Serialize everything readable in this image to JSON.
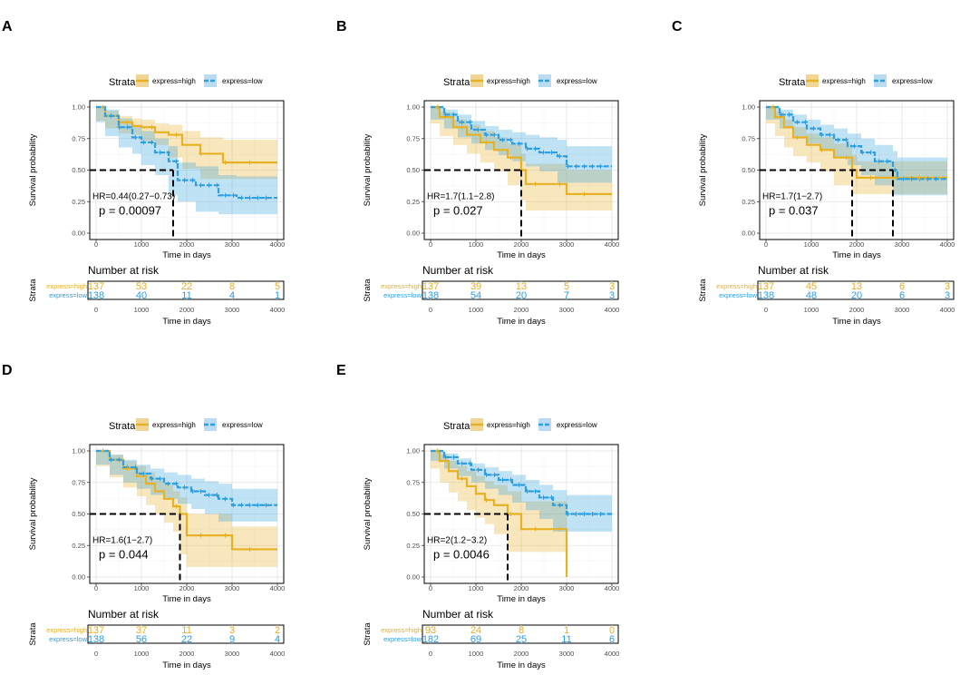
{
  "colors": {
    "high": "#E7B125",
    "low": "#2E9FDF",
    "high_band": "#F0D595",
    "low_band": "#B9DCF0",
    "grid": "#E3E3E3"
  },
  "chart_data": [
    {
      "type": "line",
      "panel": "A",
      "legend": {
        "title": "Strata",
        "labels": [
          "express=high",
          "express=low"
        ]
      },
      "xlabel": "Time in days",
      "ylabel": "Survival probability",
      "xlim": [
        0,
        4000
      ],
      "ylim": [
        0,
        1
      ],
      "x_ticks": [
        "0",
        "1000",
        "2000",
        "3000",
        "4000"
      ],
      "y_ticks": [
        "0.00",
        "0.25",
        "0.50",
        "0.75",
        "1.00"
      ],
      "hr_text": "HR=0.44(0.27−0.73)",
      "p_text": "p = 0.00097",
      "median_times": [
        1700
      ],
      "series": [
        {
          "name": "express=high",
          "x": [
            0,
            200,
            500,
            800,
            1000,
            1300,
            1600,
            1900,
            2300,
            2800,
            4000
          ],
          "y": [
            1.0,
            0.93,
            0.88,
            0.85,
            0.84,
            0.8,
            0.78,
            0.7,
            0.63,
            0.56,
            0.56
          ],
          "lower": [
            1.0,
            0.89,
            0.83,
            0.79,
            0.78,
            0.73,
            0.7,
            0.6,
            0.51,
            0.43,
            0.43
          ],
          "upper": [
            1.0,
            0.97,
            0.93,
            0.91,
            0.9,
            0.87,
            0.86,
            0.81,
            0.76,
            0.74,
            0.74
          ]
        },
        {
          "name": "express=low",
          "x": [
            0,
            200,
            500,
            800,
            1000,
            1300,
            1600,
            1800,
            2200,
            2700,
            3100,
            4000
          ],
          "y": [
            1.0,
            0.93,
            0.84,
            0.76,
            0.72,
            0.64,
            0.57,
            0.42,
            0.38,
            0.3,
            0.28,
            0.28
          ],
          "lower": [
            1.0,
            0.88,
            0.77,
            0.68,
            0.63,
            0.54,
            0.46,
            0.3,
            0.25,
            0.17,
            0.15,
            0.15
          ],
          "upper": [
            1.0,
            0.98,
            0.91,
            0.85,
            0.81,
            0.75,
            0.69,
            0.56,
            0.53,
            0.46,
            0.45,
            0.45
          ]
        }
      ],
      "risk_table": {
        "title": "Number at risk",
        "strata_label": "Strata",
        "xlabel": "Time in days",
        "rows": [
          {
            "label": "express=high",
            "values": [
              "137",
              "53",
              "22",
              "8",
              "5"
            ]
          },
          {
            "label": "express=low",
            "values": [
              "138",
              "40",
              "11",
              "4",
              "1"
            ]
          }
        ]
      }
    },
    {
      "type": "line",
      "panel": "B",
      "legend": {
        "title": "Strata",
        "labels": [
          "express=high",
          "express=low"
        ]
      },
      "xlabel": "Time in days",
      "ylabel": "Survival probability",
      "xlim": [
        0,
        4000
      ],
      "ylim": [
        0,
        1
      ],
      "x_ticks": [
        "0",
        "1000",
        "2000",
        "3000",
        "4000"
      ],
      "y_ticks": [
        "0.00",
        "0.25",
        "0.50",
        "0.75",
        "1.00"
      ],
      "hr_text": "HR=1.7(1.1−2.8)",
      "p_text": "p = 0.027",
      "median_times": [
        2000
      ],
      "series": [
        {
          "name": "express=high",
          "x": [
            0,
            200,
            500,
            800,
            1100,
            1400,
            1700,
            2000,
            2100,
            3000,
            4000
          ],
          "y": [
            1.0,
            0.92,
            0.84,
            0.78,
            0.72,
            0.66,
            0.6,
            0.5,
            0.39,
            0.31,
            0.31
          ],
          "lower": [
            1.0,
            0.87,
            0.77,
            0.7,
            0.63,
            0.56,
            0.49,
            0.38,
            0.26,
            0.18,
            0.18
          ],
          "upper": [
            1.0,
            0.96,
            0.9,
            0.86,
            0.81,
            0.76,
            0.71,
            0.63,
            0.55,
            0.5,
            0.5
          ]
        },
        {
          "name": "express=low",
          "x": [
            0,
            300,
            600,
            900,
            1200,
            1500,
            1800,
            2100,
            2400,
            2800,
            3000,
            4000
          ],
          "y": [
            1.0,
            0.94,
            0.88,
            0.82,
            0.78,
            0.74,
            0.71,
            0.67,
            0.64,
            0.61,
            0.53,
            0.53
          ],
          "lower": [
            1.0,
            0.9,
            0.83,
            0.76,
            0.71,
            0.66,
            0.62,
            0.57,
            0.53,
            0.49,
            0.4,
            0.4
          ],
          "upper": [
            1.0,
            0.98,
            0.94,
            0.89,
            0.85,
            0.82,
            0.8,
            0.78,
            0.76,
            0.74,
            0.69,
            0.69
          ]
        }
      ],
      "risk_table": {
        "title": "Number at risk",
        "strata_label": "Strata",
        "xlabel": "Time in days",
        "rows": [
          {
            "label": "express=high",
            "values": [
              "137",
              "39",
              "13",
              "5",
              "3"
            ]
          },
          {
            "label": "express=low",
            "values": [
              "138",
              "54",
              "20",
              "7",
              "3"
            ]
          }
        ]
      }
    },
    {
      "type": "line",
      "panel": "C",
      "legend": {
        "title": "Strata",
        "labels": [
          "express=high",
          "express=low"
        ]
      },
      "xlabel": "Time in days",
      "ylabel": "Survival probability",
      "xlim": [
        0,
        4000
      ],
      "ylim": [
        0,
        1
      ],
      "x_ticks": [
        "0",
        "1000",
        "2000",
        "3000",
        "4000"
      ],
      "y_ticks": [
        "0.00",
        "0.25",
        "0.50",
        "0.75",
        "1.00"
      ],
      "hr_text": "HR=1.7(1−2.7)",
      "p_text": "p = 0.037",
      "median_times": [
        1900,
        2800
      ],
      "series": [
        {
          "name": "express=high",
          "x": [
            0,
            200,
            400,
            600,
            900,
            1200,
            1500,
            1900,
            2000,
            4000
          ],
          "y": [
            1.0,
            0.92,
            0.84,
            0.76,
            0.7,
            0.66,
            0.6,
            0.5,
            0.44,
            0.44
          ],
          "lower": [
            1.0,
            0.87,
            0.77,
            0.68,
            0.61,
            0.56,
            0.49,
            0.38,
            0.31,
            0.31
          ],
          "upper": [
            1.0,
            0.96,
            0.9,
            0.84,
            0.79,
            0.76,
            0.71,
            0.62,
            0.57,
            0.57
          ]
        },
        {
          "name": "express=low",
          "x": [
            0,
            300,
            600,
            900,
            1200,
            1500,
            1800,
            2100,
            2400,
            2800,
            2900,
            4000
          ],
          "y": [
            1.0,
            0.94,
            0.88,
            0.83,
            0.78,
            0.74,
            0.69,
            0.64,
            0.57,
            0.5,
            0.43,
            0.43
          ],
          "lower": [
            1.0,
            0.9,
            0.83,
            0.77,
            0.71,
            0.66,
            0.6,
            0.54,
            0.46,
            0.38,
            0.3,
            0.3
          ],
          "upper": [
            1.0,
            0.98,
            0.94,
            0.9,
            0.86,
            0.83,
            0.79,
            0.75,
            0.7,
            0.65,
            0.6,
            0.6
          ]
        }
      ],
      "risk_table": {
        "title": "Number at risk",
        "strata_label": "Strata",
        "xlabel": "Time in days",
        "rows": [
          {
            "label": "express=high",
            "values": [
              "137",
              "45",
              "13",
              "6",
              "3"
            ]
          },
          {
            "label": "express=low",
            "values": [
              "138",
              "48",
              "20",
              "6",
              "3"
            ]
          }
        ]
      }
    },
    {
      "type": "line",
      "panel": "D",
      "legend": {
        "title": "Strata",
        "labels": [
          "express=high",
          "express=low"
        ]
      },
      "xlabel": "Time in days",
      "ylabel": "Survival probability",
      "xlim": [
        0,
        4000
      ],
      "ylim": [
        0,
        1
      ],
      "x_ticks": [
        "0",
        "1000",
        "2000",
        "3000",
        "4000"
      ],
      "y_ticks": [
        "0.00",
        "0.25",
        "0.50",
        "0.75",
        "1.00"
      ],
      "hr_text": "HR=1.6(1−2.7)",
      "p_text": "p = 0.044",
      "median_times": [
        1850
      ],
      "series": [
        {
          "name": "express=high",
          "x": [
            0,
            300,
            600,
            900,
            1100,
            1300,
            1500,
            1700,
            1850,
            2000,
            3000,
            4000
          ],
          "y": [
            1.0,
            0.93,
            0.86,
            0.8,
            0.74,
            0.68,
            0.62,
            0.56,
            0.5,
            0.33,
            0.22,
            0.22
          ],
          "lower": [
            1.0,
            0.88,
            0.79,
            0.71,
            0.64,
            0.57,
            0.5,
            0.43,
            0.36,
            0.18,
            0.08,
            0.08
          ],
          "upper": [
            1.0,
            0.97,
            0.92,
            0.88,
            0.83,
            0.78,
            0.73,
            0.68,
            0.63,
            0.5,
            0.4,
            0.4
          ]
        },
        {
          "name": "express=low",
          "x": [
            0,
            300,
            600,
            900,
            1200,
            1500,
            1800,
            2100,
            2400,
            2700,
            3000,
            4000
          ],
          "y": [
            1.0,
            0.93,
            0.87,
            0.82,
            0.78,
            0.74,
            0.71,
            0.68,
            0.65,
            0.62,
            0.57,
            0.57
          ],
          "lower": [
            1.0,
            0.89,
            0.81,
            0.75,
            0.7,
            0.65,
            0.62,
            0.58,
            0.54,
            0.5,
            0.44,
            0.44
          ],
          "upper": [
            1.0,
            0.97,
            0.93,
            0.89,
            0.86,
            0.83,
            0.81,
            0.78,
            0.76,
            0.74,
            0.7,
            0.7
          ]
        }
      ],
      "risk_table": {
        "title": "Number at risk",
        "strata_label": "Strata",
        "xlabel": "Time in days",
        "rows": [
          {
            "label": "express=high",
            "values": [
              "137",
              "37",
              "11",
              "3",
              "2"
            ]
          },
          {
            "label": "express=low",
            "values": [
              "138",
              "56",
              "22",
              "9",
              "4"
            ]
          }
        ]
      }
    },
    {
      "type": "line",
      "panel": "E",
      "legend": {
        "title": "Strata",
        "labels": [
          "express=high",
          "express=low"
        ]
      },
      "xlabel": "Time in days",
      "ylabel": "Survival probability",
      "xlim": [
        0,
        4000
      ],
      "ylim": [
        0,
        1
      ],
      "x_ticks": [
        "0",
        "1000",
        "2000",
        "3000",
        "4000"
      ],
      "y_ticks": [
        "0.00",
        "0.25",
        "0.50",
        "0.75",
        "1.00"
      ],
      "hr_text": "HR=2(1.2−3.2)",
      "p_text": "p = 0.0046",
      "median_times": [
        1700
      ],
      "series": [
        {
          "name": "express=high",
          "x": [
            0,
            200,
            400,
            600,
            800,
            1000,
            1200,
            1400,
            1700,
            2000,
            3000,
            3001
          ],
          "y": [
            1.0,
            0.92,
            0.84,
            0.78,
            0.72,
            0.66,
            0.61,
            0.57,
            0.5,
            0.38,
            0.38,
            0.0
          ],
          "lower": [
            1.0,
            0.86,
            0.75,
            0.67,
            0.6,
            0.53,
            0.47,
            0.42,
            0.34,
            0.2,
            0.2,
            0.0
          ],
          "upper": [
            1.0,
            0.97,
            0.92,
            0.88,
            0.84,
            0.8,
            0.76,
            0.73,
            0.68,
            0.6,
            0.6,
            0.0
          ]
        },
        {
          "name": "express=low",
          "x": [
            0,
            300,
            600,
            900,
            1200,
            1500,
            1800,
            2100,
            2400,
            2700,
            3000,
            4000
          ],
          "y": [
            1.0,
            0.95,
            0.9,
            0.85,
            0.81,
            0.77,
            0.73,
            0.68,
            0.63,
            0.57,
            0.5,
            0.5
          ],
          "lower": [
            1.0,
            0.92,
            0.86,
            0.8,
            0.75,
            0.7,
            0.65,
            0.59,
            0.53,
            0.46,
            0.36,
            0.36
          ],
          "upper": [
            1.0,
            0.98,
            0.94,
            0.9,
            0.87,
            0.84,
            0.81,
            0.77,
            0.73,
            0.69,
            0.65,
            0.65
          ]
        }
      ],
      "risk_table": {
        "title": "Number at risk",
        "strata_label": "Strata",
        "xlabel": "Time in days",
        "rows": [
          {
            "label": "express=high",
            "values": [
              "93",
              "24",
              "8",
              "1",
              "0"
            ]
          },
          {
            "label": "express=low",
            "values": [
              "182",
              "69",
              "25",
              "11",
              "6"
            ]
          }
        ]
      }
    }
  ]
}
